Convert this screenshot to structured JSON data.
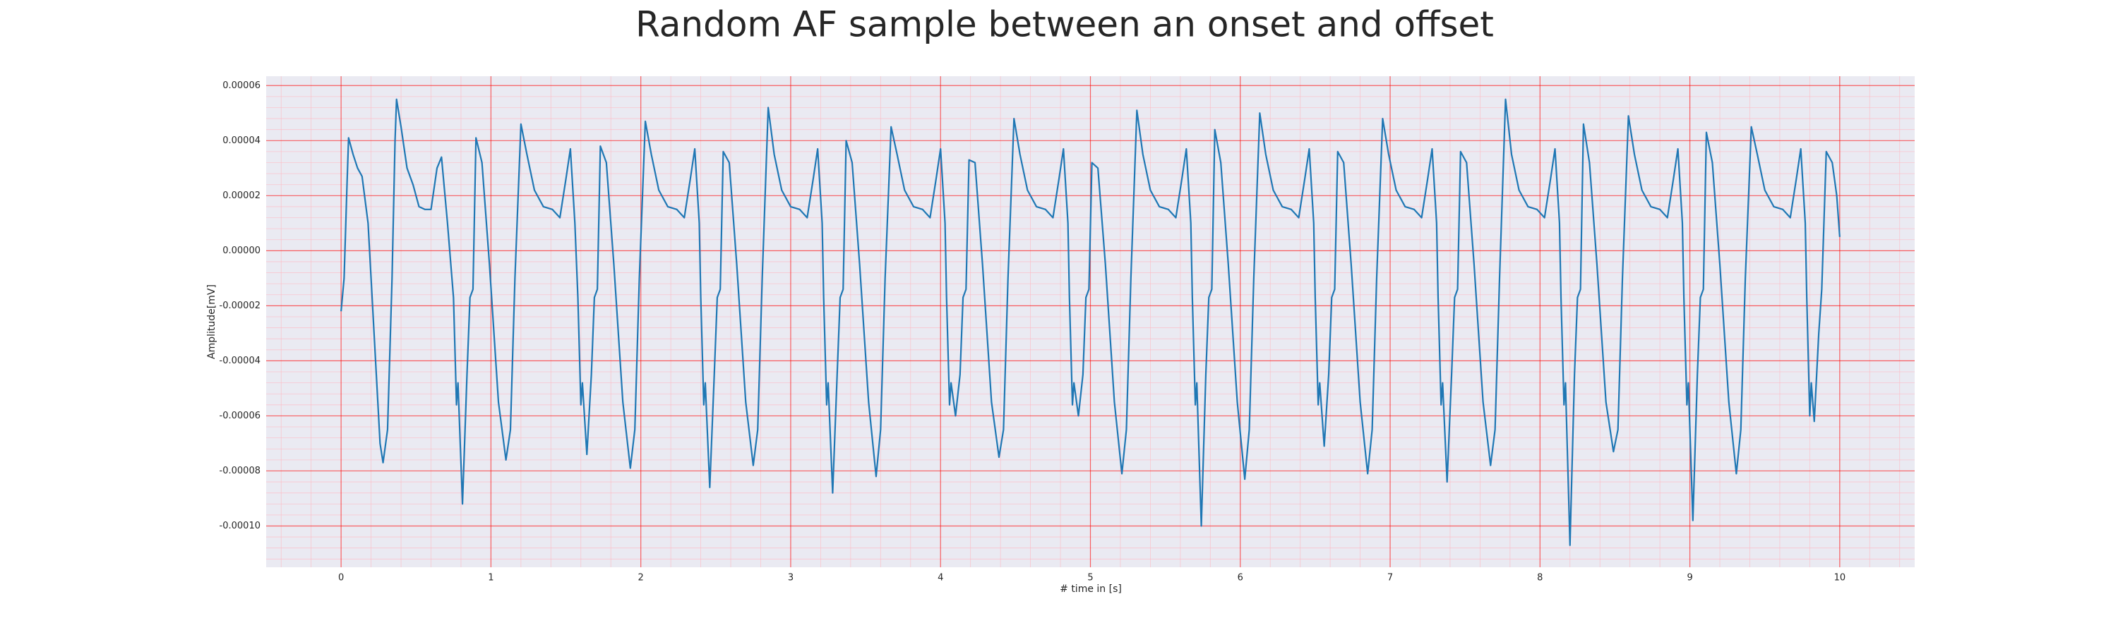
{
  "chart_data": {
    "type": "line",
    "title": "Random AF sample between an onset and offset",
    "xlabel": "# time in [s]",
    "ylabel": "Amplitude[mV]",
    "color": "#1f77b4",
    "background": "#eaeaf2",
    "grid": true,
    "grid_color": "#ff0000",
    "minor_grid": true,
    "minor_grid_color": "#ffb6c1",
    "xlim": [
      -0.5,
      10.5
    ],
    "ylim": [
      -0.000115,
      6.34e-05
    ],
    "xticks": [
      0,
      1,
      2,
      3,
      4,
      5,
      6,
      7,
      8,
      9,
      10
    ],
    "yticks": [
      {
        "value": -0.0001,
        "label": "-0.00010"
      },
      {
        "value": -8e-05,
        "label": "-0.00008"
      },
      {
        "value": -6e-05,
        "label": "-0.00006"
      },
      {
        "value": -4e-05,
        "label": "-0.00004"
      },
      {
        "value": -2e-05,
        "label": "-0.00002"
      },
      {
        "value": 0,
        "label": "0.00000"
      },
      {
        "value": 2e-05,
        "label": "0.00002"
      },
      {
        "value": 4e-05,
        "label": "0.00004"
      },
      {
        "value": 6e-05,
        "label": "0.00006"
      }
    ],
    "x": [
      0.0,
      0.02,
      0.04,
      0.05,
      0.08,
      0.11,
      0.14,
      0.18,
      0.22,
      0.26,
      0.28,
      0.31,
      0.34,
      0.36,
      0.37,
      0.4,
      0.44,
      0.48,
      0.52,
      0.56,
      0.6,
      0.64,
      0.67,
      0.71,
      0.75,
      0.77,
      0.78,
      0.81,
      0.84,
      0.86,
      0.88,
      0.9,
      0.94,
      0.99,
      1.05,
      1.1,
      1.13,
      1.16,
      1.2,
      1.24,
      1.29,
      1.35,
      1.41,
      1.46,
      1.5,
      1.53,
      1.56,
      1.58,
      1.6,
      1.61,
      1.64,
      1.67,
      1.69,
      1.71,
      1.73,
      1.77,
      1.82,
      1.88,
      1.93,
      1.96,
      1.99,
      2.03,
      2.07,
      2.12,
      2.18,
      2.24,
      2.29,
      2.33,
      2.36,
      2.39,
      2.4,
      2.42,
      2.43,
      2.46,
      2.49,
      2.51,
      2.53,
      2.55,
      2.59,
      2.64,
      2.7,
      2.75,
      2.78,
      2.81,
      2.85,
      2.89,
      2.94,
      3.0,
      3.06,
      3.11,
      3.15,
      3.18,
      3.21,
      3.22,
      3.24,
      3.25,
      3.28,
      3.31,
      3.33,
      3.35,
      3.37,
      3.41,
      3.46,
      3.52,
      3.57,
      3.6,
      3.63,
      3.67,
      3.71,
      3.76,
      3.82,
      3.88,
      3.93,
      3.97,
      4.0,
      4.03,
      4.04,
      4.06,
      4.07,
      4.1,
      4.13,
      4.15,
      4.17,
      4.19,
      4.23,
      4.28,
      4.34,
      4.39,
      4.42,
      4.45,
      4.49,
      4.53,
      4.58,
      4.64,
      4.7,
      4.75,
      4.79,
      4.82,
      4.85,
      4.86,
      4.88,
      4.89,
      4.92,
      4.95,
      4.97,
      4.99,
      5.01,
      5.05,
      5.1,
      5.16,
      5.21,
      5.24,
      5.27,
      5.31,
      5.35,
      5.4,
      5.46,
      5.52,
      5.57,
      5.61,
      5.64,
      5.67,
      5.68,
      5.7,
      5.71,
      5.74,
      5.77,
      5.79,
      5.81,
      5.83,
      5.87,
      5.92,
      5.98,
      6.03,
      6.06,
      6.09,
      6.13,
      6.17,
      6.22,
      6.28,
      6.34,
      6.39,
      6.43,
      6.46,
      6.49,
      6.5,
      6.52,
      6.53,
      6.56,
      6.59,
      6.61,
      6.63,
      6.65,
      6.69,
      6.74,
      6.8,
      6.85,
      6.88,
      6.91,
      6.95,
      6.99,
      7.04,
      7.1,
      7.16,
      7.21,
      7.25,
      7.28,
      7.31,
      7.32,
      7.34,
      7.35,
      7.38,
      7.41,
      7.43,
      7.45,
      7.47,
      7.51,
      7.56,
      7.62,
      7.67,
      7.7,
      7.73,
      7.77,
      7.81,
      7.86,
      7.92,
      7.98,
      8.03,
      8.07,
      8.1,
      8.13,
      8.14,
      8.16,
      8.17,
      8.2,
      8.23,
      8.25,
      8.27,
      8.29,
      8.33,
      8.38,
      8.44,
      8.49,
      8.52,
      8.55,
      8.59,
      8.63,
      8.68,
      8.74,
      8.8,
      8.85,
      8.89,
      8.92,
      8.95,
      8.96,
      8.98,
      8.99,
      9.02,
      9.05,
      9.07,
      9.09,
      9.11,
      9.15,
      9.2,
      9.26,
      9.31,
      9.34,
      9.37,
      9.41,
      9.45,
      9.5,
      9.56,
      9.62,
      9.67,
      9.71,
      9.74,
      9.77,
      9.78,
      9.8,
      9.81,
      9.83,
      9.86,
      9.88,
      9.91,
      9.95,
      9.98,
      10.0
    ],
    "values": [
      -2.2e-05,
      -1e-05,
      2.5e-05,
      4.1e-05,
      3.5e-05,
      3e-05,
      2.7e-05,
      1e-05,
      -3e-05,
      -7e-05,
      -7.7e-05,
      -6.5e-05,
      -1e-05,
      4e-05,
      5.5e-05,
      4.5e-05,
      3e-05,
      2.4e-05,
      1.6e-05,
      1.5e-05,
      1.5e-05,
      3e-05,
      3.4e-05,
      1e-05,
      -1.7e-05,
      -5.6e-05,
      -4.8e-05,
      -9.2e-05,
      -4.5e-05,
      -1.7e-05,
      -1.4e-05,
      4.1e-05,
      3.2e-05,
      -5e-06,
      -5.5e-05,
      -7.6e-05,
      -6.5e-05,
      -1e-05,
      4.6e-05,
      3.5e-05,
      2.2e-05,
      1.6e-05,
      1.5e-05,
      1.2e-05,
      2.6e-05,
      3.7e-05,
      1e-05,
      -1.7e-05,
      -5.6e-05,
      -4.8e-05,
      -7.4e-05,
      -4.5e-05,
      -1.7e-05,
      -1.4e-05,
      3.8e-05,
      3.2e-05,
      -5e-06,
      -5.5e-05,
      -7.9e-05,
      -6.5e-05,
      -1e-05,
      4.7e-05,
      3.5e-05,
      2.2e-05,
      1.6e-05,
      1.5e-05,
      1.2e-05,
      2.6e-05,
      3.7e-05,
      1e-05,
      -1.7e-05,
      -5.6e-05,
      -4.8e-05,
      -8.6e-05,
      -4.5e-05,
      -1.7e-05,
      -1.4e-05,
      3.6e-05,
      3.2e-05,
      -5e-06,
      -5.5e-05,
      -7.8e-05,
      -6.5e-05,
      -1e-05,
      5.2e-05,
      3.5e-05,
      2.2e-05,
      1.6e-05,
      1.5e-05,
      1.2e-05,
      2.6e-05,
      3.7e-05,
      1e-05,
      -1.7e-05,
      -5.6e-05,
      -4.8e-05,
      -8.8e-05,
      -4.5e-05,
      -1.7e-05,
      -1.4e-05,
      4e-05,
      3.2e-05,
      -5e-06,
      -5.5e-05,
      -8.2e-05,
      -6.5e-05,
      -1e-05,
      4.5e-05,
      3.5e-05,
      2.2e-05,
      1.6e-05,
      1.5e-05,
      1.2e-05,
      2.6e-05,
      3.7e-05,
      1e-05,
      -1.7e-05,
      -5.6e-05,
      -4.8e-05,
      -6e-05,
      -4.5e-05,
      -1.7e-05,
      -1.4e-05,
      3.3e-05,
      3.2e-05,
      -5e-06,
      -5.5e-05,
      -7.5e-05,
      -6.5e-05,
      -1e-05,
      4.8e-05,
      3.5e-05,
      2.2e-05,
      1.6e-05,
      1.5e-05,
      1.2e-05,
      2.6e-05,
      3.7e-05,
      1e-05,
      -1.7e-05,
      -5.6e-05,
      -4.8e-05,
      -6e-05,
      -4.5e-05,
      -1.7e-05,
      -1.4e-05,
      3.2e-05,
      3e-05,
      -5e-06,
      -5.5e-05,
      -8.1e-05,
      -6.5e-05,
      -1e-05,
      5.1e-05,
      3.5e-05,
      2.2e-05,
      1.6e-05,
      1.5e-05,
      1.2e-05,
      2.6e-05,
      3.7e-05,
      1e-05,
      -1.7e-05,
      -5.6e-05,
      -4.8e-05,
      -0.0001,
      -4.5e-05,
      -1.7e-05,
      -1.4e-05,
      4.4e-05,
      3.2e-05,
      -5e-06,
      -5.5e-05,
      -8.3e-05,
      -6.5e-05,
      -1e-05,
      5e-05,
      3.5e-05,
      2.2e-05,
      1.6e-05,
      1.5e-05,
      1.2e-05,
      2.6e-05,
      3.7e-05,
      1e-05,
      -1.7e-05,
      -5.6e-05,
      -4.8e-05,
      -7.1e-05,
      -4.5e-05,
      -1.7e-05,
      -1.4e-05,
      3.6e-05,
      3.2e-05,
      -5e-06,
      -5.5e-05,
      -8.1e-05,
      -6.5e-05,
      -1e-05,
      4.8e-05,
      3.5e-05,
      2.2e-05,
      1.6e-05,
      1.5e-05,
      1.2e-05,
      2.6e-05,
      3.7e-05,
      1e-05,
      -1.7e-05,
      -5.6e-05,
      -4.8e-05,
      -8.4e-05,
      -4.5e-05,
      -1.7e-05,
      -1.4e-05,
      3.6e-05,
      3.2e-05,
      -5e-06,
      -5.5e-05,
      -7.8e-05,
      -6.5e-05,
      -1e-05,
      5.5e-05,
      3.5e-05,
      2.2e-05,
      1.6e-05,
      1.5e-05,
      1.2e-05,
      2.6e-05,
      3.7e-05,
      1e-05,
      -1.7e-05,
      -5.6e-05,
      -4.8e-05,
      -0.000107,
      -4.5e-05,
      -1.7e-05,
      -1.4e-05,
      4.6e-05,
      3.2e-05,
      -5e-06,
      -5.5e-05,
      -7.3e-05,
      -6.5e-05,
      -1e-05,
      4.9e-05,
      3.5e-05,
      2.2e-05,
      1.6e-05,
      1.5e-05,
      1.2e-05,
      2.6e-05,
      3.7e-05,
      1e-05,
      -1.7e-05,
      -5.6e-05,
      -4.8e-05,
      -9.8e-05,
      -4.5e-05,
      -1.7e-05,
      -1.4e-05,
      4.3e-05,
      3.2e-05,
      -5e-06,
      -5.5e-05,
      -8.1e-05,
      -6.5e-05,
      -1e-05,
      4.5e-05,
      3.5e-05,
      2.2e-05,
      1.6e-05,
      1.5e-05,
      1.2e-05,
      2.6e-05,
      3.7e-05,
      1e-05,
      -1.7e-05,
      -6e-05,
      -4.8e-05,
      -6.2e-05,
      -3e-05,
      -1.4e-05,
      3.6e-05,
      3.2e-05,
      2e-05,
      5e-06
    ]
  }
}
